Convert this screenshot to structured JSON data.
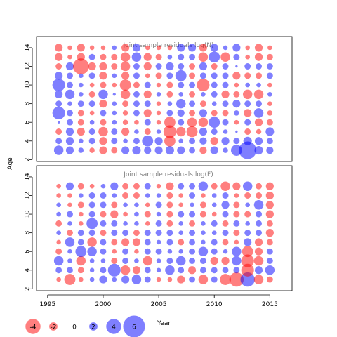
{
  "chart_data": {
    "type": "scatter",
    "ylabel": "Age",
    "xlabel": "Year",
    "xlim": [
      1994,
      2017
    ],
    "x_ticks": [
      1995,
      2000,
      2005,
      2010,
      2015
    ],
    "ylim": [
      1.8,
      15.2
    ],
    "y_ticks": [
      2,
      4,
      6,
      8,
      10,
      12,
      14
    ],
    "grid": false,
    "colors": {
      "positive": "#0000ff",
      "negative": "#ff0000"
    },
    "panels": [
      {
        "title": "Joint sample residuals log(N)",
        "years": [
          1996,
          1997,
          1998,
          1999,
          2000,
          2001,
          2002,
          2003,
          2004,
          2005,
          2006,
          2007,
          2008,
          2009,
          2010,
          2011,
          2012,
          2013,
          2014,
          2015
        ],
        "ages": [
          3,
          4,
          5,
          6,
          7,
          8,
          9,
          10,
          11,
          12,
          13,
          14
        ],
        "values": [
          [
            2.5,
            2.0,
            1.2,
            -1.2,
            -2.0,
            -1.5,
            2.0,
            2.2,
            1.8,
            2.0,
            2.2,
            2.0,
            1.5,
            -1.8,
            2.0,
            1.2,
            3.0,
            5.0,
            2.2,
            1.8
          ],
          [
            1.5,
            2.0,
            1.0,
            1.5,
            -2.0,
            1.5,
            1.0,
            1.5,
            3.0,
            2.0,
            -3.0,
            1.0,
            1.5,
            1.8,
            -2.0,
            2.0,
            1.5,
            2.2,
            2.0,
            1.5
          ],
          [
            -1.5,
            2.0,
            -2.0,
            1.5,
            -2.5,
            1.5,
            -2.0,
            1.0,
            -1.5,
            1.0,
            -3.5,
            -2.5,
            -3.0,
            2.0,
            1.5,
            1.0,
            0.3,
            -1.5,
            -1.2,
            2.2
          ],
          [
            0.3,
            1.5,
            -1.5,
            1.0,
            -1.5,
            1.0,
            -1.2,
            -1.0,
            1.5,
            -1.0,
            -3.0,
            1.5,
            -2.5,
            -2.5,
            3.0,
            1.5,
            -1.0,
            1.5,
            -2.0,
            -1.5
          ],
          [
            3.5,
            1.5,
            -1.5,
            -1.0,
            1.5,
            1.0,
            -1.2,
            1.5,
            -2.0,
            -1.0,
            1.5,
            1.8,
            -1.5,
            2.0,
            -1.5,
            -1.5,
            1.2,
            -2.0,
            2.5,
            -1.2
          ],
          [
            1.5,
            1.0,
            1.5,
            1.5,
            -2.0,
            1.0,
            -1.5,
            1.5,
            1.5,
            -1.0,
            1.0,
            2.5,
            1.5,
            -1.5,
            1.0,
            1.5,
            2.0,
            1.5,
            1.5,
            -1.0
          ],
          [
            2.0,
            2.5,
            1.0,
            -1.5,
            2.5,
            0.5,
            -2.5,
            1.5,
            -2.0,
            1.0,
            -1.5,
            1.0,
            -1.5,
            1.0,
            1.5,
            -2.0,
            -1.5,
            -2.5,
            -2.5,
            1.0
          ],
          [
            3.5,
            1.5,
            1.0,
            -1.0,
            -1.5,
            -1.0,
            -3.0,
            -1.5,
            1.5,
            -1.0,
            -1.5,
            1.5,
            1.5,
            -3.5,
            1.5,
            1.5,
            -1.0,
            1.0,
            1.0,
            -1.0
          ],
          [
            2.0,
            1.5,
            1.0,
            1.5,
            -2.0,
            1.0,
            -2.0,
            1.5,
            -1.0,
            -1.5,
            1.5,
            3.0,
            -1.5,
            1.5,
            1.5,
            1.5,
            -2.0,
            -1.5,
            -1.5,
            1.5
          ],
          [
            -1.5,
            2.0,
            -4.5,
            -2.0,
            -2.0,
            -1.5,
            -2.5,
            1.5,
            -2.0,
            1.5,
            2.0,
            1.5,
            -1.5,
            2.0,
            -1.5,
            1.5,
            0.3,
            1.5,
            1.5,
            1.5
          ],
          [
            -2.0,
            -1.0,
            -2.0,
            1.5,
            -1.5,
            -1.5,
            -2.5,
            2.5,
            -2.0,
            -1.5,
            1.0,
            1.5,
            1.5,
            -2.5,
            3.0,
            -2.5,
            1.5,
            -1.0,
            -2.0,
            -1.5
          ],
          [
            -2.0,
            -1.0,
            -2.0,
            -1.0,
            -1.0,
            1.0,
            -2.0,
            2.0,
            -1.0,
            -1.0,
            -1.0,
            2.0,
            2.0,
            -2.0,
            2.0,
            1.0,
            2.0,
            -1.0,
            -2.0,
            -1.0
          ]
        ]
      },
      {
        "title": "Joint sample residuals log(F)",
        "years": [
          1996,
          1997,
          1998,
          1999,
          2000,
          2001,
          2002,
          2003,
          2004,
          2005,
          2006,
          2007,
          2008,
          2009,
          2010,
          2011,
          2012,
          2013,
          2014,
          2015
        ],
        "ages": [
          3,
          4,
          5,
          6,
          7,
          8,
          9,
          10,
          11,
          12,
          13
        ],
        "values": [
          [
            -1.0,
            -3.0,
            -1.0,
            1.0,
            2.0,
            1.0,
            2.0,
            2.5,
            1.5,
            -1.0,
            -1.0,
            -2.0,
            1.5,
            -2.5,
            1.5,
            -3.0,
            -4.0,
            4.0,
            -2.5,
            -1.5
          ],
          [
            1.5,
            1.5,
            -1.5,
            1.0,
            1.5,
            3.5,
            -2.5,
            -2.0,
            1.5,
            1.0,
            2.5,
            1.5,
            -2.0,
            1.5,
            1.5,
            1.5,
            1.5,
            -3.5,
            2.0,
            2.5
          ],
          [
            2.5,
            1.0,
            -2.5,
            1.0,
            1.0,
            -1.5,
            1.5,
            1.0,
            -2.5,
            1.0,
            1.5,
            2.5,
            1.5,
            1.5,
            -2.0,
            -2.0,
            2.5,
            -3.5,
            -2.5,
            1.5
          ],
          [
            -1.5,
            1.0,
            3.0,
            2.5,
            1.5,
            -1.0,
            1.5,
            -1.0,
            1.5,
            1.5,
            1.0,
            1.0,
            1.5,
            2.5,
            1.5,
            1.0,
            2.5,
            -3.0,
            -2.0,
            1.5
          ],
          [
            -1.0,
            2.5,
            1.5,
            -2.5,
            1.5,
            -1.5,
            -2.0,
            -2.0,
            1.5,
            1.0,
            1.5,
            -1.5,
            1.5,
            1.0,
            1.5,
            -1.5,
            -1.0,
            2.0,
            -2.0,
            -1.5
          ],
          [
            1.0,
            -1.5,
            1.5,
            1.5,
            -1.5,
            1.5,
            1.5,
            -1.5,
            1.5,
            1.5,
            1.5,
            1.0,
            1.5,
            1.0,
            1.0,
            1.5,
            -1.5,
            1.5,
            1.5,
            -2.0
          ],
          [
            -1.5,
            1.0,
            -1.0,
            3.0,
            1.5,
            1.5,
            1.0,
            1.0,
            -1.0,
            1.5,
            -1.5,
            1.0,
            -1.5,
            1.0,
            1.5,
            -1.5,
            1.5,
            1.0,
            1.5,
            -1.5
          ],
          [
            1.0,
            1.5,
            -1.0,
            1.5,
            -1.5,
            -2.0,
            -1.0,
            1.0,
            -1.5,
            1.0,
            -1.5,
            1.5,
            1.5,
            -1.5,
            -1.0,
            1.5,
            -1.5,
            -1.5,
            1.5,
            -2.0
          ],
          [
            1.0,
            -1.0,
            -1.5,
            1.5,
            1.5,
            -1.5,
            1.0,
            1.0,
            -1.0,
            1.5,
            -1.5,
            -1.0,
            1.0,
            -1.5,
            1.0,
            2.0,
            -1.5,
            1.0,
            2.5,
            -2.0
          ],
          [
            -1.0,
            -1.0,
            1.0,
            1.5,
            1.5,
            1.0,
            -1.5,
            -1.5,
            1.0,
            1.0,
            -1.5,
            -1.0,
            1.5,
            -1.0,
            1.0,
            1.5,
            -1.0,
            -1.5,
            -1.5,
            -2.0
          ],
          [
            -1.0,
            2.0,
            -1.5,
            -1.0,
            1.0,
            2.0,
            -1.5,
            -1.5,
            1.5,
            -1.0,
            -2.0,
            1.5,
            1.5,
            2.5,
            -1.5,
            -2.5,
            -2.0,
            2.5,
            -1.5,
            -2.0
          ]
        ]
      }
    ],
    "legend": {
      "values": [
        -4,
        -2,
        0,
        2,
        4,
        6
      ],
      "labels": [
        "-4",
        "-2",
        "0",
        "2",
        "4",
        "6"
      ],
      "placement": "bottom-left"
    }
  }
}
